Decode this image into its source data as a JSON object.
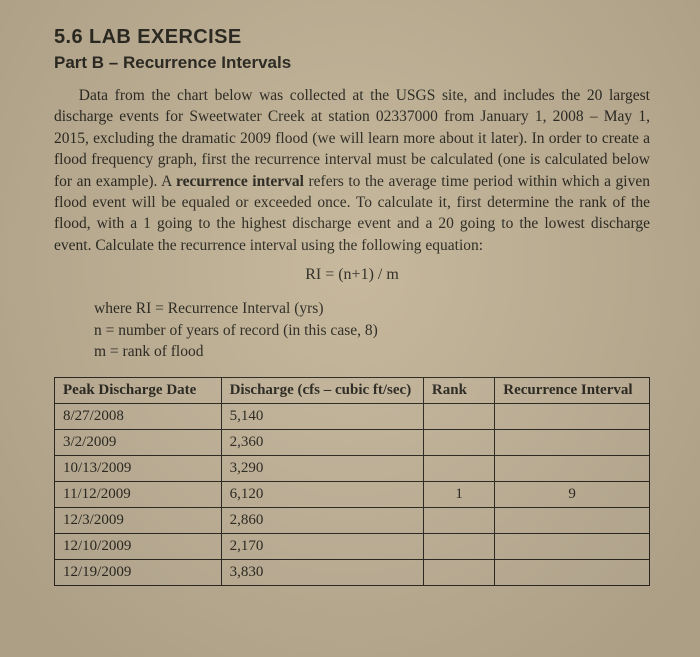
{
  "section_number": "5.6 LAB EXERCISE",
  "part_label": "Part B – Recurrence Intervals",
  "paragraph": "Data from the chart below was collected at the USGS site, and includes the 20 largest discharge events for Sweetwater Creek at station 02337000 from January 1, 2008 – May 1, 2015, excluding the dramatic 2009 flood (we will learn more about it later). In order to create a flood frequency graph, first the recurrence interval must be calculated (one is calculated below for an example). A ",
  "bold_term": "recurrence interval",
  "paragraph_cont": " refers to the average time period within which a given flood event will be equaled or exceeded once. To calculate it, first determine the rank of the flood, with a 1 going to the highest discharge event and a 20 going to the lowest discharge event. Calculate the recurrence interval using the following equation:",
  "equation": "RI = (n+1) / m",
  "def_where": "where RI = Recurrence Interval (yrs)",
  "def_n": "n = number of years of record (in this case, 8)",
  "def_m": "m = rank of flood",
  "table": {
    "columns": [
      "Peak Discharge Date",
      "Discharge (cfs – cubic ft/sec)",
      "Rank",
      "Recurrence Interval"
    ],
    "rows": [
      {
        "date": "8/27/2008",
        "discharge": "5,140",
        "rank": "",
        "ri": ""
      },
      {
        "date": "3/2/2009",
        "discharge": "2,360",
        "rank": "",
        "ri": ""
      },
      {
        "date": "10/13/2009",
        "discharge": "3,290",
        "rank": "",
        "ri": ""
      },
      {
        "date": "11/12/2009",
        "discharge": "6,120",
        "rank": "1",
        "ri": "9"
      },
      {
        "date": "12/3/2009",
        "discharge": "2,860",
        "rank": "",
        "ri": ""
      },
      {
        "date": "12/10/2009",
        "discharge": "2,170",
        "rank": "",
        "ri": ""
      },
      {
        "date": "12/19/2009",
        "discharge": "3,830",
        "rank": "",
        "ri": ""
      }
    ],
    "col_widths": [
      "28%",
      "34%",
      "12%",
      "26%"
    ]
  }
}
